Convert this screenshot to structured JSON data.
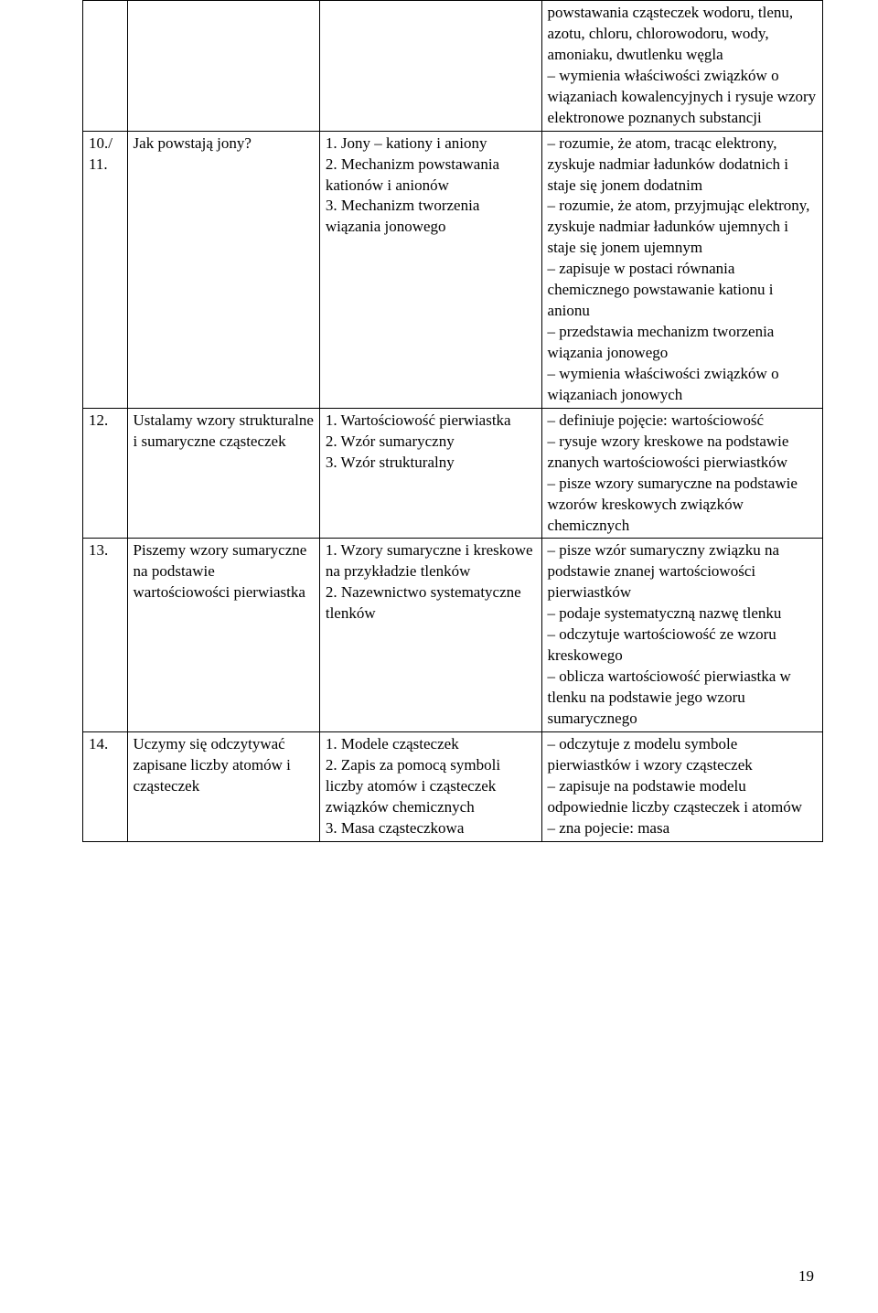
{
  "page": {
    "number": "19",
    "font_family": "Times New Roman",
    "font_size_pt": 13,
    "text_color": "#000000",
    "border_color": "#000000",
    "background_color": "#ffffff"
  },
  "table": {
    "columns": 4,
    "column_widths_pct": [
      6,
      26,
      30,
      38
    ],
    "rows": [
      {
        "c1": "",
        "c2": "",
        "c3": "",
        "c4": "powstawania cząsteczek wodoru, tlenu, azotu, chloru, chlorowodoru, wody, amoniaku, dwutlenku węgla\n– wymienia właściwości związków o wiązaniach kowalencyjnych i rysuje wzory elektronowe poznanych substancji"
      },
      {
        "c1": "10./\n11.",
        "c2": "Jak powstają jony?",
        "c3": "1. Jony – kationy i aniony\n2. Mechanizm powstawania kationów i anionów\n3. Mechanizm tworzenia wiązania jonowego",
        "c4": "– rozumie, że atom, tracąc elektrony, zyskuje nadmiar ładunków dodatnich i staje się jonem dodatnim\n– rozumie, że atom, przyjmując elektrony, zyskuje nadmiar ładunków ujemnych i staje się jonem ujemnym\n– zapisuje w postaci równania chemicznego powstawanie kationu i anionu\n– przedstawia mechanizm tworzenia wiązania jonowego\n– wymienia właściwości związków o wiązaniach jonowych"
      },
      {
        "c1": "12.",
        "c2": "Ustalamy wzory strukturalne i sumaryczne cząsteczek",
        "c3": "1. Wartościowość pierwiastka\n2. Wzór sumaryczny\n3. Wzór strukturalny",
        "c4": "– definiuje pojęcie: wartościowość\n– rysuje wzory kreskowe na podstawie znanych wartościowości pierwiastków\n– pisze wzory sumaryczne na podstawie wzorów kreskowych związków chemicznych"
      },
      {
        "c1": "13.",
        "c2": "Piszemy wzory sumaryczne na podstawie wartościowości pierwiastka",
        "c3": "1. Wzory sumaryczne i kreskowe na przykładzie tlenków\n2. Nazewnictwo systematyczne tlenków",
        "c4": "– pisze wzór sumaryczny związku na podstawie znanej wartościowości pierwiastków\n– podaje systematyczną nazwę tlenku\n– odczytuje wartościowość ze wzoru kreskowego\n– oblicza wartościowość pierwiastka w tlenku na podstawie jego wzoru sumarycznego"
      },
      {
        "c1": "14.",
        "c2": "Uczymy się odczytywać zapisane liczby atomów i cząsteczek",
        "c3": "1. Modele cząsteczek\n2. Zapis za pomocą symboli liczby atomów i cząsteczek związków chemicznych\n3. Masa cząsteczkowa",
        "c4": "– odczytuje z modelu symbole pierwiastków i wzory cząsteczek\n– zapisuje na podstawie modelu odpowiednie liczby cząsteczek i atomów\n– zna pojecie: masa"
      }
    ]
  }
}
